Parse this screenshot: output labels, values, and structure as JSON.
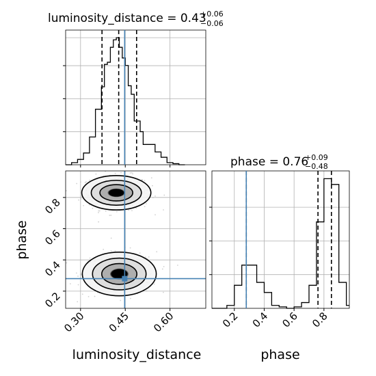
{
  "chart_data": [
    {
      "type": "histogram",
      "panel": "top-left",
      "title": {
        "main": "luminosity_distance = 0.43",
        "sup": "+0.06",
        "sub": "−0.06"
      },
      "xlim": [
        0.25,
        0.72
      ],
      "bin_edges": [
        0.25,
        0.27,
        0.29,
        0.31,
        0.33,
        0.35,
        0.37,
        0.38,
        0.39,
        0.4,
        0.41,
        0.42,
        0.43,
        0.44,
        0.45,
        0.46,
        0.47,
        0.48,
        0.49,
        0.5,
        0.51,
        0.53,
        0.55,
        0.57,
        0.59,
        0.61,
        0.63,
        0.65
      ],
      "counts": [
        0,
        2,
        5,
        11,
        26,
        52,
        73,
        94,
        96,
        110,
        117,
        119,
        110,
        100,
        93,
        74,
        66,
        41,
        41,
        31,
        19,
        19,
        12,
        7,
        2,
        1,
        0
      ],
      "quantiles": [
        0.372,
        0.428,
        0.488
      ],
      "truth": 0.448,
      "grid": true
    },
    {
      "type": "contour",
      "panel": "bottom-left",
      "xlabel": "luminosity_distance",
      "ylabel": "phase",
      "xlim": [
        0.25,
        0.72
      ],
      "ylim": [
        0.09,
        0.97
      ],
      "xticks": [
        "0.30",
        "0.45",
        "0.60"
      ],
      "yticks": [
        "0.2",
        "0.4",
        "0.6",
        "0.8"
      ],
      "truth": [
        0.448,
        0.28
      ],
      "modes": [
        {
          "center": [
            0.42,
            0.83
          ],
          "spread": [
            0.058,
            0.055
          ]
        },
        {
          "center": [
            0.43,
            0.31
          ],
          "spread": [
            0.062,
            0.07
          ]
        }
      ],
      "grid": true
    },
    {
      "type": "histogram",
      "panel": "bottom-right",
      "title": {
        "main": "phase = 0.76",
        "sup": "+0.09",
        "sub": "−0.48"
      },
      "xlabel": "phase",
      "xlim": [
        0.05,
        0.97
      ],
      "xticks": [
        "0.2",
        "0.4",
        "0.6",
        "0.8"
      ],
      "bin_edges": [
        0.05,
        0.1,
        0.15,
        0.2,
        0.25,
        0.3,
        0.35,
        0.4,
        0.45,
        0.5,
        0.55,
        0.6,
        0.65,
        0.7,
        0.75,
        0.8,
        0.85,
        0.9,
        0.95,
        0.97
      ],
      "counts": [
        0,
        0,
        2,
        16,
        30,
        30,
        18,
        11,
        2,
        1,
        0,
        1,
        4,
        16,
        60,
        90,
        86,
        18,
        2
      ],
      "quantiles": [
        0.28,
        0.76,
        0.85
      ],
      "truth": 0.28,
      "grid": true
    }
  ],
  "colors": {
    "truth": "#4682b4",
    "line": "#000000",
    "grid": "#b0b0b0",
    "scatter": "#bdbdbd"
  }
}
